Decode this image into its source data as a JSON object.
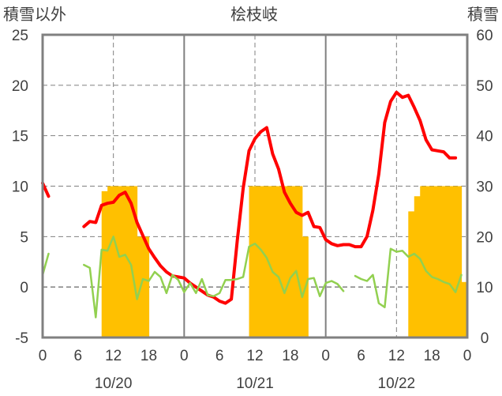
{
  "chart_data": {
    "type": "bar",
    "title": "桧枝岐",
    "y_left_label": "積雪以外",
    "y_right_label": "積雪",
    "y_left_range": [
      -5,
      25
    ],
    "y_left_ticks": [
      -5,
      0,
      5,
      10,
      15,
      20,
      25
    ],
    "y_right_range": [
      0,
      60
    ],
    "y_right_ticks": [
      0,
      10,
      20,
      30,
      40,
      50,
      60
    ],
    "x_range_hours": [
      0,
      72
    ],
    "x_ticks": [
      {
        "h": 0,
        "label": "0"
      },
      {
        "h": 6,
        "label": "6"
      },
      {
        "h": 12,
        "label": "12"
      },
      {
        "h": 18,
        "label": "18"
      },
      {
        "h": 24,
        "label": "0"
      },
      {
        "h": 30,
        "label": "6"
      },
      {
        "h": 36,
        "label": "12"
      },
      {
        "h": 42,
        "label": "18"
      },
      {
        "h": 48,
        "label": "0"
      },
      {
        "h": 54,
        "label": "6"
      },
      {
        "h": 60,
        "label": "12"
      },
      {
        "h": 66,
        "label": "18"
      },
      {
        "h": 72,
        "label": "0"
      }
    ],
    "date_labels": [
      {
        "h": 12,
        "label": "10/20"
      },
      {
        "h": 36,
        "label": "10/21"
      },
      {
        "h": 60,
        "label": "10/22"
      }
    ],
    "day_boundaries_h": [
      24,
      48
    ],
    "noon_lines_h": [
      12,
      36,
      60
    ],
    "colors": {
      "snow_bar": "#FFC000",
      "red_line": "#FF0000",
      "green_line": "#92D050",
      "frame": "#808080",
      "grid": "#808080"
    },
    "series": [
      {
        "kind": "bar",
        "axis": "right",
        "x_start": 10,
        "x_step": 1,
        "values": [
          29,
          30,
          30,
          30,
          30,
          30,
          20,
          20,
          0,
          0,
          0,
          0,
          0,
          0,
          0,
          0,
          0,
          0,
          0,
          0,
          0,
          0,
          0,
          0,
          0,
          30,
          30,
          30,
          30,
          30,
          30,
          30,
          30,
          30,
          20,
          0,
          0,
          0,
          0,
          0,
          0,
          0,
          0,
          0,
          0,
          0,
          0,
          0,
          0,
          0,
          0,
          0,
          25,
          28,
          30,
          30,
          30,
          30,
          30,
          30,
          30,
          11
        ]
      },
      {
        "kind": "line",
        "axis": "left",
        "points": [
          [
            0,
            10.3
          ],
          [
            1,
            9.0
          ],
          null,
          [
            7,
            6.0
          ],
          [
            8,
            6.5
          ],
          [
            9,
            6.4
          ],
          [
            10,
            8.1
          ],
          [
            11,
            8.3
          ],
          [
            12,
            8.4
          ],
          [
            13,
            9.1
          ],
          [
            14,
            9.4
          ],
          [
            15,
            8.3
          ],
          [
            16,
            6.4
          ],
          [
            17,
            5.1
          ],
          [
            18,
            3.8
          ],
          [
            19,
            2.9
          ],
          [
            20,
            2.1
          ],
          [
            21,
            1.5
          ],
          [
            22,
            1.1
          ],
          [
            23,
            1.0
          ],
          [
            24,
            0.9
          ],
          [
            25,
            0.4
          ],
          [
            26,
            0.0
          ],
          [
            27,
            -0.4
          ],
          [
            28,
            -0.8
          ],
          [
            29,
            -1.0
          ],
          [
            30,
            -1.4
          ],
          [
            31,
            -1.6
          ],
          [
            32,
            -1.2
          ],
          [
            33,
            4.6
          ],
          [
            34,
            9.8
          ],
          [
            35,
            13.5
          ],
          [
            36,
            14.7
          ],
          [
            37,
            15.4
          ],
          [
            38,
            15.8
          ],
          [
            39,
            13.2
          ],
          [
            40,
            11.7
          ],
          [
            41,
            9.4
          ],
          [
            42,
            8.3
          ],
          [
            43,
            7.4
          ],
          [
            44,
            7.1
          ],
          [
            45,
            7.4
          ],
          [
            46,
            6.0
          ],
          [
            47,
            5.9
          ],
          [
            48,
            4.7
          ],
          [
            49,
            4.3
          ],
          [
            50,
            4.1
          ],
          [
            51,
            4.2
          ],
          [
            52,
            4.2
          ],
          [
            53,
            4.0
          ],
          [
            54,
            4.0
          ],
          [
            55,
            5.0
          ],
          [
            56,
            7.6
          ],
          [
            57,
            11.2
          ],
          [
            58,
            16.3
          ],
          [
            59,
            18.4
          ],
          [
            60,
            19.3
          ],
          [
            61,
            18.8
          ],
          [
            62,
            19.0
          ],
          [
            63,
            17.8
          ],
          [
            64,
            16.5
          ],
          [
            65,
            14.6
          ],
          [
            66,
            13.6
          ],
          [
            67,
            13.5
          ],
          [
            68,
            13.4
          ],
          [
            69,
            12.8
          ],
          [
            70,
            12.8
          ]
        ]
      },
      {
        "kind": "line",
        "axis": "left",
        "points": [
          [
            0,
            1.2
          ],
          [
            1,
            3.3
          ],
          null,
          [
            7,
            2.2
          ],
          [
            8,
            1.9
          ],
          [
            9,
            -3.0
          ],
          [
            10,
            3.7
          ],
          [
            11,
            3.6
          ],
          [
            12,
            5.0
          ],
          [
            13,
            3.0
          ],
          [
            14,
            3.2
          ],
          [
            15,
            2.2
          ],
          [
            16,
            -1.2
          ],
          [
            17,
            0.8
          ],
          [
            18,
            0.6
          ],
          [
            19,
            1.5
          ],
          [
            20,
            1.0
          ],
          [
            21,
            -0.6
          ],
          [
            22,
            1.2
          ],
          [
            23,
            0.7
          ],
          [
            24,
            -0.5
          ],
          [
            25,
            0.4
          ],
          [
            26,
            -0.6
          ],
          [
            27,
            0.8
          ],
          [
            28,
            -0.8
          ],
          [
            29,
            -0.9
          ],
          [
            30,
            -0.6
          ],
          [
            31,
            0.7
          ],
          [
            32,
            0.7
          ],
          [
            33,
            0.8
          ],
          [
            34,
            1.0
          ],
          [
            35,
            4.0
          ],
          [
            36,
            4.3
          ],
          [
            37,
            3.7
          ],
          [
            38,
            2.9
          ],
          [
            39,
            1.5
          ],
          [
            40,
            1.0
          ],
          [
            41,
            -0.6
          ],
          [
            42,
            0.9
          ],
          [
            43,
            1.6
          ],
          [
            44,
            -1.0
          ],
          [
            45,
            0.8
          ],
          [
            46,
            0.9
          ],
          [
            47,
            -0.9
          ],
          [
            48,
            0.4
          ],
          [
            49,
            0.6
          ],
          [
            50,
            0.3
          ],
          [
            51,
            -0.4
          ],
          null,
          [
            53,
            1.1
          ],
          [
            54,
            0.8
          ],
          [
            55,
            0.6
          ],
          [
            56,
            1.2
          ],
          [
            57,
            -1.6
          ],
          [
            58,
            -2.0
          ],
          [
            59,
            3.8
          ],
          [
            60,
            3.5
          ],
          [
            61,
            3.6
          ],
          [
            62,
            3.0
          ],
          [
            63,
            3.3
          ],
          [
            64,
            2.8
          ],
          [
            65,
            1.6
          ],
          [
            66,
            1.0
          ],
          [
            67,
            0.8
          ],
          [
            68,
            0.5
          ],
          [
            69,
            0.3
          ],
          [
            70,
            -0.5
          ],
          [
            71,
            1.2
          ]
        ]
      }
    ]
  }
}
